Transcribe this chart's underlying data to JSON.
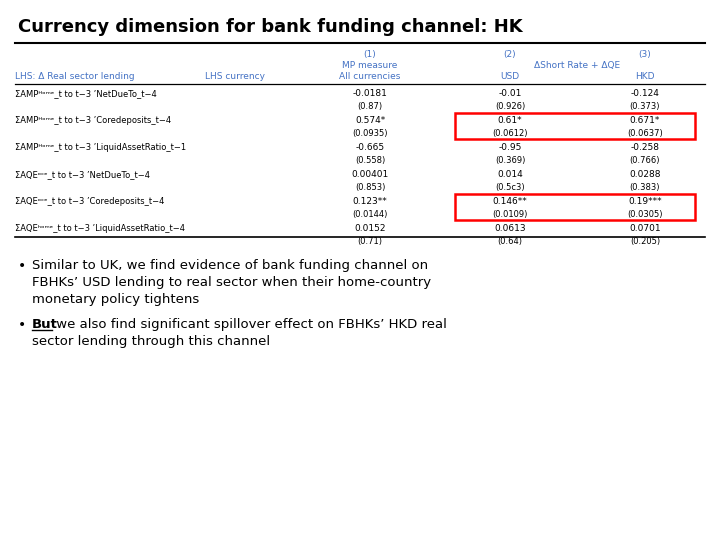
{
  "title": "Currency dimension for bank funding channel: HK",
  "background_color": "#ffffff",
  "header_color": "#4472c4",
  "col_numbers": [
    "(1)",
    "(2)",
    "(3)"
  ],
  "col_group_label": "ΔShort Rate + ΔQE",
  "col_mp_label": "MP measure",
  "col_lhs_label": "LHS: Δ Real sector lending",
  "col_currency_label": "LHS currency",
  "col_sub1": "All currencies",
  "col_sub2": "USD",
  "col_sub3": "HKD",
  "rows": [
    {
      "label": "ΣAMPᴴᵒᵐᵉ_t to t−3 ’NetDueTo_t−4",
      "v1": "-0.0181",
      "v2": "-0.01",
      "v3": "-0.124",
      "se1": "(0.87)",
      "se2": "(0.926)",
      "se3": "(0.373)",
      "highlight": false
    },
    {
      "label": "ΣAMPᴴᵒᵐᵉ_t to t−3 ’Coredeposits_t−4",
      "v1": "0.574*",
      "v2": "0.61*",
      "v3": "0.671*",
      "se1": "(0.0935)",
      "se2": "(0.0612)",
      "se3": "(0.0637)",
      "highlight": true
    },
    {
      "label": "ΣAMPᴴᵒᵐᵉ_t to t−3 ’LiquidAssetRatio_t−1",
      "v1": "-0.665",
      "v2": "-0.95",
      "v3": "-0.258",
      "se1": "(0.558)",
      "se2": "(0.369)",
      "se3": "(0.766)",
      "highlight": false
    },
    {
      "label": "ΣAQEᵒᶜᵉ_t to t−3 ’NetDueTo_t−4",
      "v1": "0.00401",
      "v2": "0.014",
      "v3": "0.0288",
      "se1": "(0.853)",
      "se2": "(0.5c3)",
      "se3": "(0.383)",
      "highlight": false
    },
    {
      "label": "ΣAQEᵒᶜᵉ_t to t−3 ’Coredeposits_t−4",
      "v1": "0.123**",
      "v2": "0.146**",
      "v3": "0.19***",
      "se1": "(0.0144)",
      "se2": "(0.0109)",
      "se3": "(0.0305)",
      "highlight": true
    },
    {
      "label": "ΣAQEʰᵒᵐᵉ_t to t−3 ’LiquidAssetRatio_t−4",
      "v1": "0.0152",
      "v2": "0.0613",
      "v3": "0.0701",
      "se1": "(0.71)",
      "se2": "(0.64)",
      "se3": "(0.205)",
      "highlight": false
    }
  ],
  "bullet1_line1": "Similar to UK, we find evidence of bank funding channel on",
  "bullet1_line2": "FBHKs’ USD lending to real sector when their home-country",
  "bullet1_line3": "monetary policy tightens",
  "bullet2_underline": "But",
  "bullet2_rest": " we also find significant spillover effect on FBHKs’ HKD real",
  "bullet2_line2": "sector lending through this channel"
}
